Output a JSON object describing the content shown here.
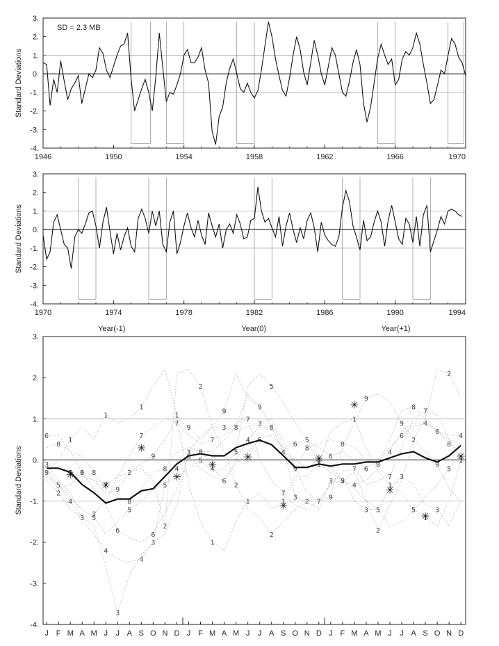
{
  "chart_data": [
    {
      "type": "line",
      "ylabel": "Standard Deviations",
      "annotation": "SD = 2.3 MB",
      "xlim": [
        1946,
        1970
      ],
      "ylim": [
        -4,
        3
      ],
      "x_ticks": [
        "1946",
        "1950",
        "1954",
        "1958",
        "1962",
        "1966",
        "1970"
      ],
      "y_ticks": [
        "3.",
        "2.",
        "1.",
        "0.",
        "-1.",
        "-2.",
        "-3.",
        "-4."
      ],
      "reference_lines": [
        1,
        0,
        -1
      ],
      "grid": false,
      "event_windows": [
        [
          1951.0,
          1952.1
        ],
        [
          1953.0,
          1954.0
        ],
        [
          1957.0,
          1958.0
        ],
        [
          1965.0,
          1966.0
        ],
        [
          1969.0,
          1969.9
        ]
      ],
      "series": [
        {
          "x": [
            1946.0,
            1946.2,
            1946.4,
            1946.6,
            1946.8,
            1947.0,
            1947.2,
            1947.4,
            1947.6,
            1947.8,
            1948.0,
            1948.2,
            1948.4,
            1948.6,
            1948.8,
            1949.0,
            1949.2,
            1949.4,
            1949.6,
            1949.8,
            1950.0,
            1950.2,
            1950.4,
            1950.6,
            1950.8,
            1951.0,
            1951.2,
            1951.4,
            1951.6,
            1951.8,
            1952.0,
            1952.2,
            1952.4,
            1952.6,
            1952.8,
            1953.0,
            1953.2,
            1953.4,
            1953.6,
            1953.8,
            1954.0,
            1954.2,
            1954.4,
            1954.6,
            1954.8,
            1955.0,
            1955.2,
            1955.4,
            1955.6,
            1955.8,
            1956.0,
            1956.2,
            1956.4,
            1956.6,
            1956.8,
            1957.0,
            1957.2,
            1957.4,
            1957.6,
            1957.8,
            1958.0,
            1958.2,
            1958.4,
            1958.6,
            1958.8,
            1959.0,
            1959.2,
            1959.4,
            1959.6,
            1959.8,
            1960.0,
            1960.2,
            1960.4,
            1960.6,
            1960.8,
            1961.0,
            1961.2,
            1961.4,
            1961.6,
            1961.8,
            1962.0,
            1962.2,
            1962.4,
            1962.6,
            1962.8,
            1963.0,
            1963.2,
            1963.4,
            1963.6,
            1963.8,
            1964.0,
            1964.2,
            1964.4,
            1964.6,
            1964.8,
            1965.0,
            1965.2,
            1965.4,
            1965.6,
            1965.8,
            1966.0,
            1966.2,
            1966.4,
            1966.6,
            1966.8,
            1967.0,
            1967.2,
            1967.4,
            1967.6,
            1967.8,
            1968.0,
            1968.2,
            1968.4,
            1968.6,
            1968.8,
            1969.0,
            1969.2,
            1969.4,
            1969.6,
            1969.8,
            1970.0
          ],
          "y": [
            0.6,
            0.5,
            -1.7,
            -0.3,
            -1.0,
            0.7,
            -0.4,
            -1.4,
            -0.8,
            -0.5,
            -0.1,
            -1.6,
            -0.8,
            0.0,
            -0.2,
            0.2,
            1.4,
            1.1,
            0.2,
            -0.2,
            0.4,
            1.0,
            1.5,
            1.6,
            2.2,
            -0.3,
            -2.0,
            -1.4,
            -0.8,
            -0.3,
            -1.0,
            -2.0,
            -0.2,
            2.2,
            0.3,
            -1.5,
            -1.0,
            -1.1,
            -0.6,
            0.0,
            1.0,
            1.3,
            0.6,
            0.6,
            0.9,
            1.4,
            0.2,
            -0.5,
            -3.1,
            -3.8,
            -2.3,
            -1.8,
            -0.5,
            0.3,
            0.8,
            0.0,
            -0.8,
            -1.0,
            -0.5,
            -1.0,
            -1.3,
            -0.9,
            0.2,
            1.5,
            2.8,
            2.0,
            0.8,
            -0.1,
            -0.9,
            -1.2,
            -0.2,
            1.0,
            2.0,
            1.3,
            0.1,
            -0.6,
            0.6,
            1.8,
            1.0,
            0.0,
            -0.6,
            0.4,
            1.4,
            1.0,
            0.0,
            -1.0,
            -1.2,
            -0.4,
            0.6,
            1.3,
            0.5,
            -1.6,
            -2.6,
            -1.8,
            -0.5,
            0.8,
            1.6,
            1.0,
            0.5,
            0.8,
            -0.6,
            -0.3,
            0.8,
            1.2,
            1.0,
            1.4,
            2.2,
            1.6,
            0.5,
            -0.5,
            -1.6,
            -1.4,
            -0.6,
            0.2,
            0.0,
            1.0,
            1.9,
            1.6,
            0.9,
            0.6,
            -0.1
          ]
        }
      ]
    },
    {
      "type": "line",
      "ylabel": "Standard Deviations",
      "xlim": [
        1970,
        1994
      ],
      "ylim": [
        -4,
        3
      ],
      "x_ticks": [
        "1970",
        "1974",
        "1978",
        "1982",
        "1986",
        "1990",
        "1994"
      ],
      "y_ticks": [
        "3.",
        "2.",
        "1.",
        "0.",
        "-1.",
        "-2.",
        "-3.",
        "-4."
      ],
      "reference_lines": [
        1,
        0,
        -1
      ],
      "grid": false,
      "event_windows": [
        [
          1972.0,
          1973.0
        ],
        [
          1976.0,
          1977.0
        ],
        [
          1982.0,
          1983.0
        ],
        [
          1987.0,
          1988.0
        ],
        [
          1991.0,
          1992.0
        ]
      ],
      "series": [
        {
          "x": [
            1970.0,
            1970.2,
            1970.4,
            1970.6,
            1970.8,
            1971.0,
            1971.2,
            1971.4,
            1971.6,
            1971.8,
            1972.0,
            1972.2,
            1972.4,
            1972.6,
            1972.8,
            1973.0,
            1973.2,
            1973.4,
            1973.6,
            1973.8,
            1974.0,
            1974.2,
            1974.4,
            1974.6,
            1974.8,
            1975.0,
            1975.2,
            1975.4,
            1975.6,
            1975.8,
            1976.0,
            1976.2,
            1976.4,
            1976.6,
            1976.8,
            1977.0,
            1977.2,
            1977.4,
            1977.6,
            1977.8,
            1978.0,
            1978.2,
            1978.4,
            1978.6,
            1978.8,
            1979.0,
            1979.2,
            1979.4,
            1979.6,
            1979.8,
            1980.0,
            1980.2,
            1980.4,
            1980.6,
            1980.8,
            1981.0,
            1981.2,
            1981.4,
            1981.6,
            1981.8,
            1982.0,
            1982.2,
            1982.4,
            1982.6,
            1982.8,
            1983.0,
            1983.2,
            1983.4,
            1983.6,
            1983.8,
            1984.0,
            1984.2,
            1984.4,
            1984.6,
            1984.8,
            1985.0,
            1985.2,
            1985.4,
            1985.6,
            1985.8,
            1986.0,
            1986.2,
            1986.4,
            1986.6,
            1986.8,
            1987.0,
            1987.2,
            1987.4,
            1987.6,
            1987.8,
            1988.0,
            1988.2,
            1988.4,
            1988.6,
            1988.8,
            1989.0,
            1989.2,
            1989.4,
            1989.6,
            1989.8,
            1990.0,
            1990.2,
            1990.4,
            1990.6,
            1990.8,
            1991.0,
            1991.2,
            1991.4,
            1991.6,
            1991.8,
            1992.0,
            1992.2,
            1992.4,
            1992.6,
            1992.8,
            1993.0,
            1993.2,
            1993.4,
            1993.6,
            1993.8
          ],
          "y": [
            -0.3,
            -1.6,
            -1.2,
            0.4,
            0.8,
            0.0,
            -0.8,
            -1.0,
            -2.1,
            -0.4,
            0.0,
            -0.2,
            0.3,
            0.9,
            1.0,
            0.2,
            -1.0,
            0.4,
            1.2,
            -0.1,
            -1.3,
            -0.2,
            -1.1,
            -0.4,
            0.1,
            -0.9,
            -1.2,
            0.6,
            1.1,
            0.6,
            -0.2,
            1.0,
            0.2,
            1.0,
            -0.8,
            -1.2,
            0.4,
            1.0,
            -1.3,
            -0.7,
            0.2,
            0.9,
            0.1,
            -0.4,
            0.5,
            -0.3,
            -0.8,
            0.9,
            0.2,
            -0.4,
            0.3,
            -1.0,
            0.0,
            0.3,
            -0.2,
            0.8,
            0.3,
            -0.5,
            -0.4,
            0.5,
            0.6,
            2.3,
            1.0,
            0.4,
            0.6,
            0.1,
            -0.4,
            0.7,
            -0.9,
            0.2,
            0.9,
            0.0,
            -0.7,
            0.1,
            -0.5,
            0.5,
            0.9,
            0.1,
            -1.2,
            0.4,
            -0.3,
            -0.6,
            -0.8,
            -0.9,
            -0.4,
            1.2,
            2.1,
            1.5,
            0.2,
            -0.4,
            -1.1,
            0.5,
            -0.6,
            -0.4,
            0.4,
            1.0,
            0.4,
            -0.9,
            0.5,
            1.3,
            0.4,
            -0.5,
            -0.8,
            0.6,
            0.3,
            -0.7,
            0.7,
            -0.9,
            0.8,
            1.3,
            -1.2,
            -0.6,
            0.0,
            0.7,
            0.3,
            1.0,
            1.1,
            1.0,
            0.8,
            0.7
          ]
        }
      ]
    },
    {
      "type": "line",
      "ylabel": "Standard Deviations",
      "period_labels": [
        "Year(-1)",
        "Year(0)",
        "Year(+1)"
      ],
      "x_ticks": [
        "J",
        "F",
        "M",
        "A",
        "M",
        "J",
        "J",
        "A",
        "S",
        "O",
        "N",
        "D",
        "J",
        "F",
        "M",
        "A",
        "M",
        "J",
        "J",
        "A",
        "S",
        "O",
        "N",
        "D",
        "J",
        "F",
        "M",
        "A",
        "M",
        "J",
        "J",
        "A",
        "S",
        "O",
        "N",
        "D"
      ],
      "ylim": [
        -4,
        3
      ],
      "y_ticks": [
        "3.",
        "2.",
        "1.",
        "0.",
        "-1.",
        "-2.",
        "-3.",
        "-4."
      ],
      "reference_lines": [
        1,
        0,
        -1
      ],
      "grid": false,
      "composite_series": {
        "name": "composite",
        "values": [
          -0.2,
          -0.2,
          -0.3,
          -0.6,
          -0.8,
          -1.05,
          -0.95,
          -0.95,
          -0.75,
          -0.7,
          -0.4,
          -0.1,
          0.1,
          0.15,
          0.1,
          0.1,
          0.3,
          0.4,
          0.48,
          0.37,
          0.1,
          -0.18,
          -0.18,
          -0.1,
          -0.15,
          -0.1,
          -0.1,
          -0.05,
          -0.05,
          0.05,
          0.15,
          0.2,
          0.05,
          -0.05,
          0.1,
          0.35
        ]
      },
      "member_markers": [
        {
          "label": "1",
          "values": [
            -0.3,
            0.0,
            0.5,
            0.8,
            0.5,
            1.1,
            0.9,
            1.0,
            1.3,
            1.8,
            2.2,
            1.1,
            -0.6,
            -1.5,
            -2.0,
            -2.2,
            -1.5,
            -1.0,
            -0.8,
            -1.2,
            -1.0,
            -0.4,
            -0.4,
            -0.1,
            0.7,
            0.9,
            1.0,
            0.3,
            -0.3,
            -0.6,
            -0.8,
            -1.2,
            -1.4,
            -1.6,
            -1.0,
            0.0
          ]
        },
        {
          "label": "2",
          "values": [
            -0.5,
            -0.8,
            -1.2,
            -1.4,
            -1.3,
            -1.0,
            -0.4,
            -0.3,
            -0.2,
            -0.5,
            -1.6,
            2.1,
            2.2,
            1.8,
            0.8,
            0.2,
            -0.6,
            -1.2,
            -1.4,
            -1.8,
            -1.5,
            -1.2,
            -1.0,
            -1.0,
            -0.6,
            -0.5,
            -0.3,
            -1.0,
            -1.7,
            -1.1,
            -0.5,
            0.5,
            1.0,
            2.2,
            2.1,
            1.5
          ]
        },
        {
          "label": "3",
          "values": [
            -0.1,
            -0.5,
            -0.8,
            -1.4,
            -1.6,
            -2.6,
            -3.7,
            -2.8,
            -2.3,
            -2.0,
            -1.8,
            -1.1,
            0.2,
            0.6,
            0.8,
            0.8,
            0.7,
            0.8,
            0.9,
            1.0,
            0.3,
            -0.9,
            -1.0,
            -1.2,
            -0.5,
            -0.4,
            -1.0,
            -1.2,
            -1.2,
            -0.7,
            -0.4,
            -0.6,
            -1.1,
            -1.2,
            -1.6,
            -1.0
          ]
        },
        {
          "label": "4",
          "values": [
            -0.4,
            -0.6,
            -1.0,
            -1.5,
            -1.8,
            -2.2,
            -2.4,
            -2.5,
            -2.4,
            -2.0,
            -0.6,
            -0.2,
            0.1,
            0.3,
            -0.2,
            -0.5,
            0.0,
            0.5,
            0.8,
            0.8,
            0.2,
            0.0,
            -0.2,
            0.0,
            -0.2,
            -0.5,
            -0.6,
            -0.5,
            -0.2,
            0.2,
            0.7,
            0.9,
            0.9,
            0.7,
            0.6,
            0.6
          ]
        },
        {
          "label": "5",
          "values": [
            -0.2,
            -0.6,
            -0.9,
            -1.2,
            -1.4,
            -1.8,
            -1.5,
            -1.2,
            -1.0,
            -0.7,
            -0.6,
            -0.4,
            -0.2,
            0.0,
            -0.3,
            -0.2,
            0.2,
            1.8,
            2.1,
            1.8,
            1.4,
            0.9,
            0.5,
            -0.1,
            -0.3,
            -0.5,
            -0.7,
            -1.0,
            -1.2,
            -1.6,
            -1.5,
            -1.2,
            -0.9,
            -0.6,
            -0.2,
            0.2
          ]
        },
        {
          "label": "6",
          "values": [
            0.6,
            0.6,
            0.2,
            -0.3,
            -0.7,
            -1.1,
            -1.7,
            -1.9,
            -2.0,
            -1.8,
            -1.3,
            -0.7,
            0.1,
            -0.2,
            -0.4,
            -0.5,
            -0.1,
            0.2,
            0.5,
            0.6,
            0.3,
            0.4,
            0.5,
            0.3,
            0.1,
            0.2,
            0.0,
            -0.2,
            0.0,
            0.3,
            0.6,
            0.8,
            0.9,
            0.7,
            0.5,
            0.4
          ]
        },
        {
          "label": "7",
          "values": [
            -0.1,
            -0.2,
            -0.3,
            -0.4,
            -0.5,
            -0.6,
            -0.4,
            0.1,
            0.6,
            0.8,
            1.0,
            0.9,
            0.6,
            0.4,
            0.5,
            0.6,
            0.9,
            1.0,
            0.0,
            -0.5,
            -0.8,
            -1.1,
            -1.2,
            -1.0,
            -0.6,
            -0.3,
            -0.2,
            -0.6,
            -0.5,
            -0.4,
            0.3,
            1.0,
            1.2,
            1.1,
            0.5,
            0.0
          ]
        },
        {
          "label": "8",
          "values": [
            0.3,
            0.4,
            0.2,
            0.1,
            -0.3,
            -0.7,
            -0.9,
            -1.0,
            -0.7,
            -0.3,
            -0.2,
            0.2,
            0.3,
            0.2,
            0.2,
            0.5,
            0.8,
            1.6,
            1.3,
            0.8,
            0.2,
            -0.2,
            0.3,
            0.4,
            0.5,
            0.4,
            0.3,
            0.0,
            -0.1,
            0.5,
            1.2,
            1.3,
            1.0,
            0.7,
            0.4,
            0.2
          ]
        },
        {
          "label": "9",
          "values": [
            -0.3,
            -0.7,
            -0.6,
            -0.3,
            -0.5,
            -0.8,
            -0.7,
            -0.3,
            -0.1,
            0.1,
            0.5,
            1.0,
            0.8,
            0.5,
            0.8,
            1.2,
            2.1,
            1.5,
            1.3,
            0.8,
            0.5,
            -0.2,
            -0.8,
            -1.0,
            -0.9,
            0.3,
            0.9,
            1.5,
            1.6,
            1.4,
            0.9,
            0.5,
            0.2,
            -0.1,
            -0.7,
            -1.0
          ]
        },
        {
          "label": "*",
          "values": [
            null,
            null,
            -0.35,
            null,
            null,
            -0.6,
            null,
            null,
            0.3,
            null,
            null,
            -0.4,
            null,
            null,
            -0.1,
            null,
            null,
            0.08,
            null,
            null,
            -1.1,
            null,
            null,
            0.05,
            null,
            null,
            1.35,
            null,
            null,
            -0.72,
            null,
            null,
            -1.35,
            null,
            null,
            0.1
          ]
        }
      ]
    }
  ]
}
